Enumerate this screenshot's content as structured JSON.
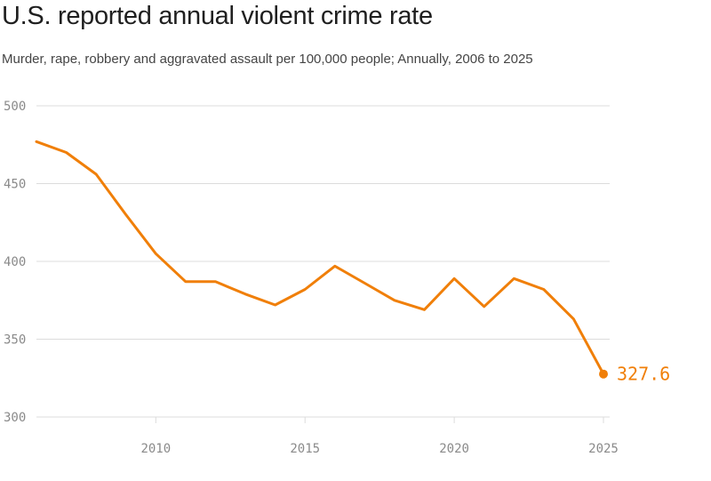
{
  "header": {
    "title": "U.S. reported annual violent crime rate",
    "subtitle": "Murder, rape, robbery and aggravated assault per 100,000 people; Annually, 2006 to 2025"
  },
  "colors": {
    "line": "#f07f09",
    "grid": "#dcdcdc",
    "tick": "#8a8a8a"
  },
  "chart_data": {
    "type": "line",
    "title": "U.S. reported annual violent crime rate",
    "subtitle": "Murder, rape, robbery and aggravated assault per 100,000 people; Annually, 2006 to 2025",
    "xlabel": "",
    "ylabel": "",
    "xlim": [
      2006,
      2025
    ],
    "ylim": [
      300,
      500
    ],
    "x_ticks": [
      "2010",
      "2015",
      "2020",
      "2025"
    ],
    "y_ticks": [
      "500",
      "450",
      "400",
      "350",
      "300"
    ],
    "grid": true,
    "legend": "none",
    "series": [
      {
        "x": [
          2006,
          2007,
          2008,
          2009,
          2010,
          2011,
          2012,
          2013,
          2014,
          2015,
          2016,
          2017,
          2018,
          2019,
          2020,
          2021,
          2022,
          2023,
          2024,
          2025
        ],
        "values": [
          477,
          470,
          456,
          430,
          405,
          387,
          387,
          379,
          372,
          382,
          397,
          386,
          375,
          369,
          389,
          371,
          389,
          382,
          363,
          327.6
        ]
      }
    ],
    "end_label": "327.6"
  }
}
